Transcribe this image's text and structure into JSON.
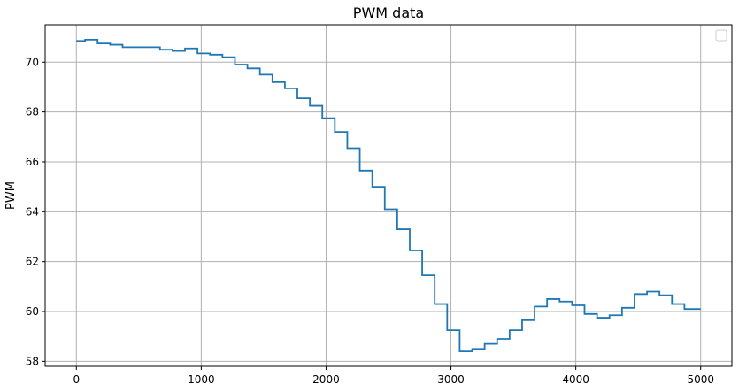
{
  "chart_data": {
    "type": "line",
    "title": "PWM data",
    "xlabel": "",
    "ylabel": "PWM",
    "xlim": [
      -250,
      5250
    ],
    "ylim": [
      57.8,
      71.5
    ],
    "xticks": [
      0,
      1000,
      2000,
      3000,
      4000,
      5000
    ],
    "yticks": [
      58,
      60,
      62,
      64,
      66,
      68,
      70
    ],
    "grid": true,
    "legend": "top-right",
    "series": [
      {
        "color": "#1f77b4",
        "style": "step",
        "x": [
          0,
          70,
          170,
          270,
          370,
          470,
          570,
          670,
          770,
          870,
          970,
          1070,
          1170,
          1270,
          1370,
          1470,
          1570,
          1670,
          1770,
          1870,
          1970,
          2070,
          2170,
          2270,
          2370,
          2470,
          2570,
          2670,
          2770,
          2870,
          2970,
          3070,
          3170,
          3270,
          3370,
          3470,
          3570,
          3670,
          3770,
          3870,
          3970,
          4070,
          4170,
          4270,
          4370,
          4470,
          4570,
          4670,
          4770,
          4870,
          4970,
          5000
        ],
        "y": [
          70.85,
          70.9,
          70.75,
          70.7,
          70.6,
          70.6,
          70.6,
          70.5,
          70.45,
          70.55,
          70.35,
          70.3,
          70.2,
          69.9,
          69.75,
          69.5,
          69.2,
          68.95,
          68.55,
          68.25,
          67.75,
          67.2,
          66.55,
          65.65,
          65.0,
          64.1,
          63.3,
          62.45,
          61.45,
          60.3,
          59.25,
          58.4,
          58.5,
          58.7,
          58.9,
          59.25,
          59.65,
          60.2,
          60.5,
          60.4,
          60.25,
          59.9,
          59.75,
          59.85,
          60.15,
          60.7,
          60.8,
          60.65,
          60.3,
          60.1,
          60.1,
          60.1
        ]
      }
    ]
  }
}
